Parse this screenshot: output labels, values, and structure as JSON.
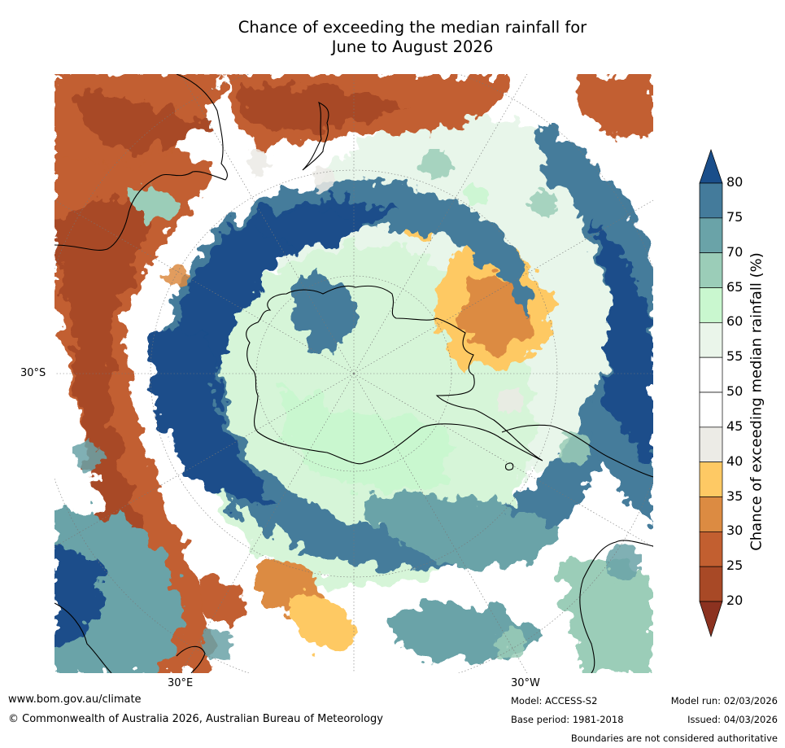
{
  "title_line1": "Chance of exceeding the median rainfall for",
  "title_line2": "June to August 2026",
  "axis_labels": {
    "lat_30s": "30°S",
    "lon_30e": "30°E",
    "lon_30w": "30°W"
  },
  "colorbar": {
    "label": "Chance of exceeding median rainfall (%)",
    "ticks": [
      "80",
      "75",
      "70",
      "65",
      "60",
      "55",
      "50",
      "45",
      "40",
      "35",
      "30",
      "25",
      "20"
    ],
    "colors": [
      "#1a4e8a",
      "#447b9b",
      "#6aa3a8",
      "#9bcdb8",
      "#c9f7cf",
      "#eaf5ea",
      "#ffffff",
      "#ffffff",
      "#ecebe6",
      "#fec964",
      "#dc8b42",
      "#c25f30",
      "#a84926",
      "#8c3220"
    ]
  },
  "footer": {
    "site": "www.bom.gov.au/climate",
    "copyright": "© Commonwealth of Australia 2026, Australian Bureau of Meteorology",
    "model": "Model: ACCESS-S2",
    "base_period": "Base period: 1981-2018",
    "model_run": "Model run: 02/03/2026",
    "issued": "Issued: 04/03/2026",
    "disclaimer": "Boundaries are not considered authoritative"
  }
}
